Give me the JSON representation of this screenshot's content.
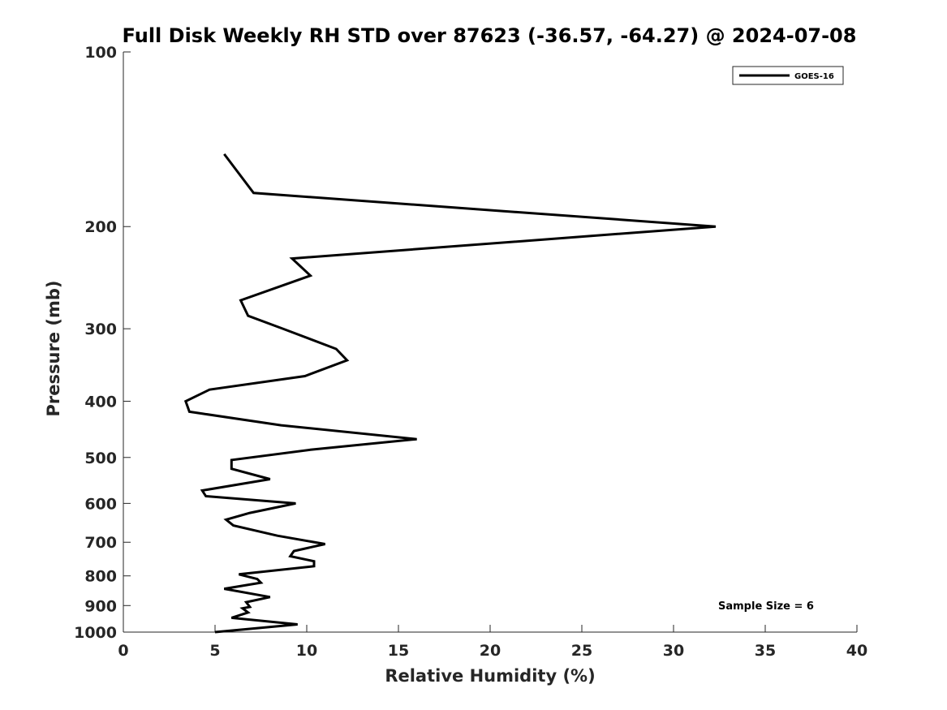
{
  "chart_data": {
    "type": "line",
    "title": "Full Disk Weekly RH STD over 87623 (-36.57, -64.27) @ 2024-07-08",
    "xlabel": "Relative Humidity (%)",
    "ylabel": "Pressure (mb)",
    "xlim": [
      0,
      40
    ],
    "ylim": [
      100,
      1000
    ],
    "y_scale": "log",
    "y_reversed": true,
    "grid": false,
    "xticks": [
      0,
      5,
      10,
      15,
      20,
      25,
      30,
      35,
      40
    ],
    "xtick_labels": [
      "0",
      "5",
      "10",
      "15",
      "20",
      "25",
      "30",
      "35",
      "40"
    ],
    "yticks": [
      100,
      200,
      300,
      400,
      500,
      600,
      700,
      800,
      900,
      1000
    ],
    "ytick_labels": [
      "100",
      "200",
      "300",
      "400",
      "500",
      "600",
      "700",
      "800",
      "900",
      "1000"
    ],
    "legend": {
      "position": "top-right",
      "entries": [
        "GOES-16"
      ]
    },
    "annotation": "Sample Size = 6",
    "series": [
      {
        "name": "GOES-16",
        "color": "#000000",
        "points": [
          [
            5.5,
            150
          ],
          [
            7.1,
            175
          ],
          [
            32.3,
            200
          ],
          [
            9.2,
            227
          ],
          [
            10.2,
            243
          ],
          [
            6.4,
            268
          ],
          [
            6.8,
            285
          ],
          [
            8.7,
            300
          ],
          [
            11.6,
            325
          ],
          [
            12.2,
            340
          ],
          [
            9.9,
            362
          ],
          [
            4.7,
            382
          ],
          [
            3.4,
            400
          ],
          [
            3.6,
            417
          ],
          [
            8.6,
            440
          ],
          [
            16.0,
            465
          ],
          [
            10.2,
            485
          ],
          [
            5.9,
            505
          ],
          [
            5.9,
            523
          ],
          [
            8.0,
            545
          ],
          [
            4.3,
            570
          ],
          [
            4.5,
            583
          ],
          [
            9.4,
            600
          ],
          [
            6.9,
            623
          ],
          [
            5.6,
            640
          ],
          [
            6.0,
            655
          ],
          [
            8.4,
            682
          ],
          [
            11.0,
            705
          ],
          [
            9.3,
            725
          ],
          [
            9.1,
            740
          ],
          [
            10.4,
            755
          ],
          [
            10.4,
            770
          ],
          [
            6.3,
            795
          ],
          [
            7.3,
            810
          ],
          [
            7.5,
            822
          ],
          [
            5.5,
            842
          ],
          [
            8.0,
            870
          ],
          [
            6.7,
            888
          ],
          [
            6.9,
            905
          ],
          [
            6.5,
            910
          ],
          [
            6.8,
            925
          ],
          [
            5.9,
            945
          ],
          [
            9.5,
            970
          ],
          [
            5.0,
            1000
          ]
        ]
      }
    ]
  }
}
